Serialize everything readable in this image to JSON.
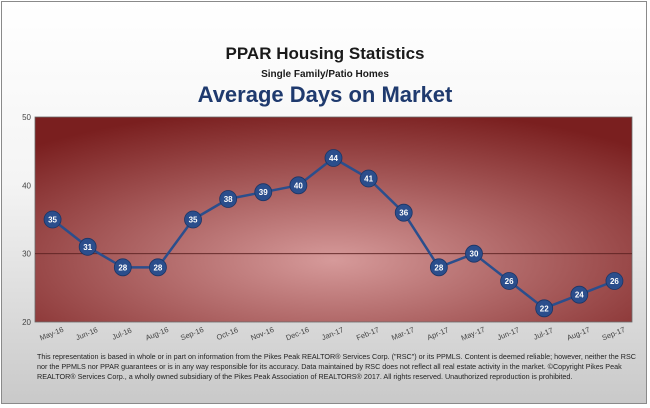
{
  "header": {
    "title": "PPAR Housing Statistics",
    "subtitle": "Single Family/Patio Homes",
    "chart_title": "Average Days on Market"
  },
  "footnote": "This representation is based in whole or in part on information from the Pikes Peak REALTOR® Services Corp. (\"RSC\") or its PPMLS. Content is deemed reliable; however, neither the RSC nor the PPMLS nor PPAR guarantees or is in any way responsible for its accuracy. Data maintained by RSC does not reflect all real estate activity in the market. ©Copyright Pikes Peak REALTOR® Services Corp., a wholly owned subsidiary of the Pikes Peak Association of REALTORS® 2017. All rights reserved. Unauthorized reproduction is prohibited.",
  "colors": {
    "plot_center": "#d69a9a",
    "plot_edge": "#7a1f1f",
    "line": "#2b4e8c",
    "marker": "#2b4e8c",
    "label": "#ffffff",
    "title": "#1f3a6e"
  },
  "chart_data": {
    "type": "line",
    "title": "Average Days on Market",
    "categories": [
      "May-16",
      "Jun-16",
      "Jul-16",
      "Aug-16",
      "Sep-16",
      "Oct-16",
      "Nov-16",
      "Dec-16",
      "Jan-17",
      "Feb-17",
      "Mar-17",
      "Apr-17",
      "May-17",
      "Jun-17",
      "Jul-17",
      "Aug-17",
      "Sep-17"
    ],
    "series": [
      {
        "values": [
          35,
          31,
          28,
          28,
          35,
          38,
          39,
          40,
          44,
          41,
          36,
          28,
          30,
          26,
          22,
          24,
          26
        ]
      }
    ],
    "ylim": [
      20,
      50
    ],
    "yticks": [
      20,
      30,
      40,
      50
    ],
    "gridlines": [
      30
    ],
    "data_labels": true,
    "xlabel": "",
    "ylabel": ""
  }
}
